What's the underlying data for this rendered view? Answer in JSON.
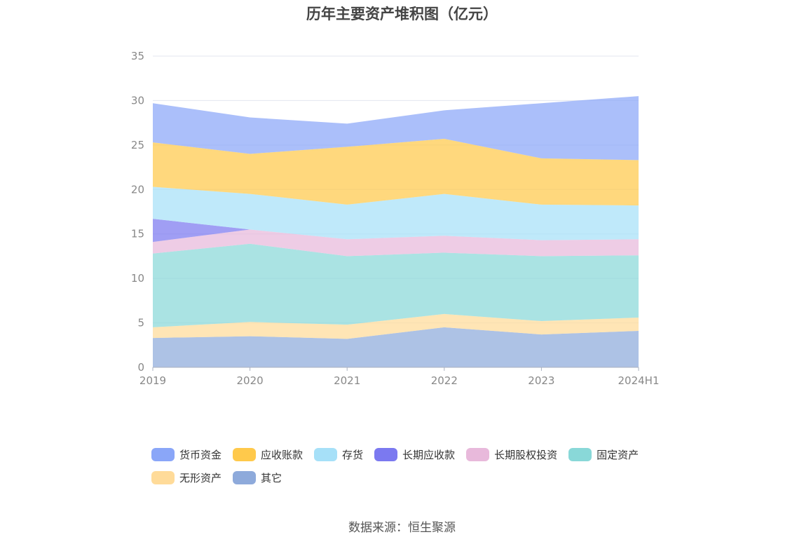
{
  "chart_data": {
    "type": "area",
    "stacked": true,
    "title": "历年主要资产堆积图（亿元）",
    "categories": [
      "2019",
      "2020",
      "2021",
      "2022",
      "2023",
      "2024H1"
    ],
    "ylim": [
      0,
      35
    ],
    "yticks": [
      0,
      5,
      10,
      15,
      20,
      25,
      30,
      35
    ],
    "grid": true,
    "legend_position": "bottom",
    "series": [
      {
        "name": "其它",
        "color": "#8eaadb",
        "values": [
          3.3,
          3.5,
          3.2,
          4.5,
          3.7,
          4.1
        ]
      },
      {
        "name": "无形资产",
        "color": "#ffdb99",
        "values": [
          1.2,
          1.6,
          1.6,
          1.5,
          1.5,
          1.5
        ]
      },
      {
        "name": "固定资产",
        "color": "#89d8d8",
        "values": [
          8.3,
          8.8,
          7.7,
          6.9,
          7.3,
          7.0
        ]
      },
      {
        "name": "长期股权投资",
        "color": "#e8b9db",
        "values": [
          1.3,
          1.6,
          1.9,
          1.9,
          1.8,
          1.8
        ]
      },
      {
        "name": "长期应收款",
        "color": "#7b79f0",
        "values": [
          2.6,
          0,
          0,
          0,
          0,
          0
        ]
      },
      {
        "name": "存货",
        "color": "#a6e0f8",
        "values": [
          3.6,
          4.0,
          3.9,
          4.7,
          4.0,
          3.8
        ]
      },
      {
        "name": "应收账款",
        "color": "#ffc94b",
        "values": [
          5.0,
          4.5,
          6.5,
          6.2,
          5.2,
          5.1
        ]
      },
      {
        "name": "货币资金",
        "color": "#8aa6f8",
        "values": [
          4.4,
          4.1,
          2.6,
          3.2,
          6.2,
          7.2
        ]
      }
    ]
  },
  "legend_order": [
    "货币资金",
    "应收账款",
    "存货",
    "长期应收款",
    "长期股权投资",
    "固定资产",
    "无形资产",
    "其它"
  ],
  "source_note": "数据来源：恒生聚源"
}
